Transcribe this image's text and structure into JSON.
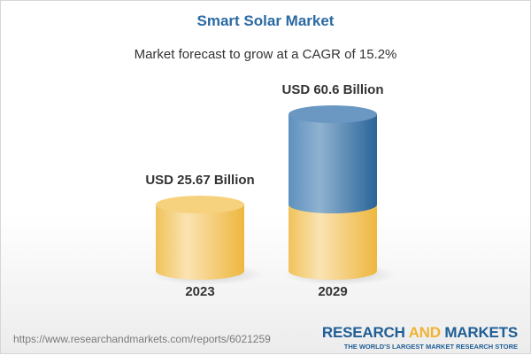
{
  "header": {
    "title": "Smart Solar Market",
    "subtitle": "Market forecast to grow at a CAGR of 15.2%"
  },
  "chart_data": {
    "type": "bar",
    "style": "3d-cylinder",
    "categories": [
      "2023",
      "2029"
    ],
    "values": [
      25.67,
      60.6
    ],
    "data_labels": [
      "USD 25.67 Billion",
      "USD 60.6 Billion"
    ],
    "unit": "USD Billion",
    "title": "Smart Solar Market",
    "grid": false,
    "colors": {
      "base": "#f2c45a",
      "growth": "#3f7fb3"
    }
  },
  "footer": {
    "url": "https://www.researchandmarkets.com/reports/6021259",
    "logo": {
      "word1": "RESEARCH ",
      "word2": "AND",
      "word3": " MARKETS",
      "tagline": "THE WORLD'S LARGEST MARKET RESEARCH STORE"
    }
  }
}
